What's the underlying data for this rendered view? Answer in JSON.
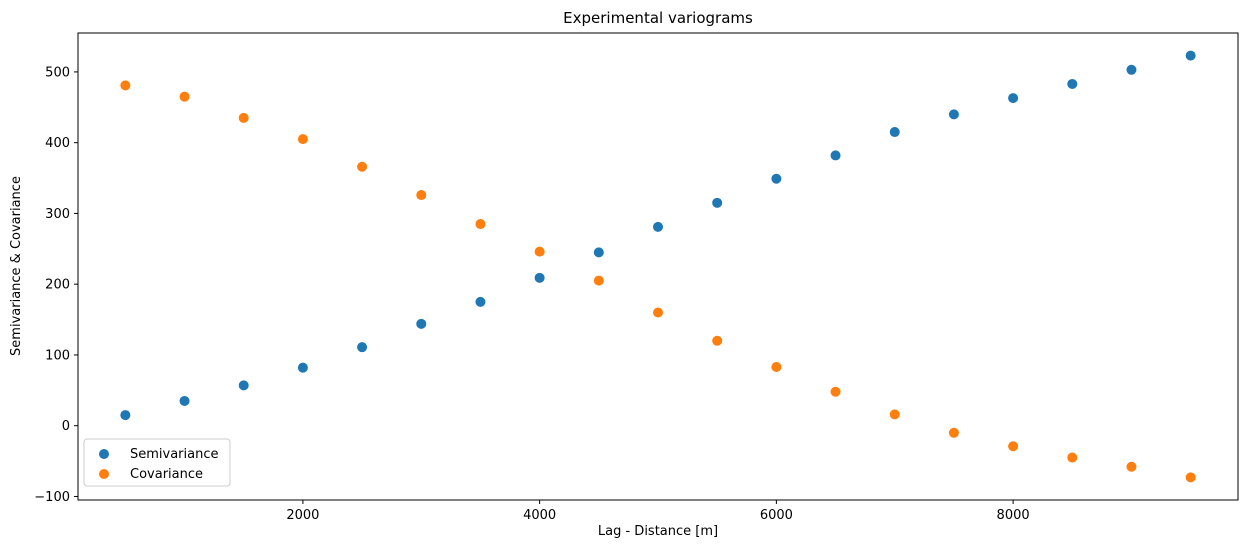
{
  "chart_data": {
    "type": "scatter",
    "title": "Experimental variograms",
    "xlabel": "Lag - Distance [m]",
    "ylabel": "Semivariance & Covariance",
    "xlim": [
      100,
      9900
    ],
    "ylim": [
      -105,
      555
    ],
    "xticks": [
      2000,
      4000,
      6000,
      8000
    ],
    "yticks": [
      -100,
      0,
      100,
      200,
      300,
      400,
      500
    ],
    "grid": false,
    "legend_position": "lower-left",
    "x": [
      500,
      1000,
      1500,
      2000,
      2500,
      3000,
      3500,
      4000,
      4500,
      5000,
      5500,
      6000,
      6500,
      7000,
      7500,
      8000,
      8500,
      9000,
      9500
    ],
    "series": [
      {
        "name": "Semivariance",
        "color": "#1f77b4",
        "values": [
          15,
          35,
          57,
          82,
          111,
          144,
          175,
          209,
          245,
          281,
          315,
          349,
          382,
          415,
          440,
          463,
          483,
          503,
          523
        ]
      },
      {
        "name": "Covariance",
        "color": "#ff7f0e",
        "values": [
          481,
          465,
          435,
          405,
          366,
          326,
          285,
          246,
          205,
          160,
          120,
          83,
          48,
          16,
          -10,
          -29,
          -45,
          -58,
          -73
        ]
      }
    ]
  }
}
